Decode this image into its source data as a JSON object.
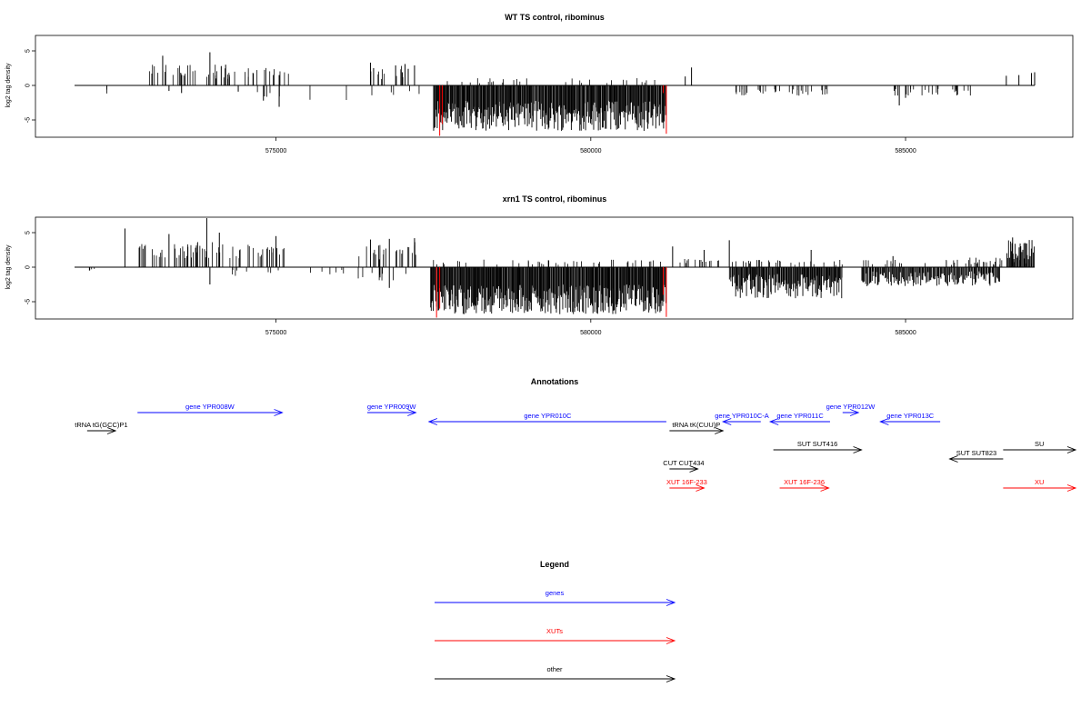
{
  "chart_data": [
    {
      "type": "bar",
      "title": "WT TS control, ribominus",
      "ylabel": "log2 tag density",
      "xlim": [
        571600,
        587800
      ],
      "ylim": [
        -7.5,
        7.5
      ],
      "yticks": [
        -5,
        0,
        5
      ],
      "xticks": [
        575000,
        580000,
        585000
      ],
      "xtick_labels": [
        "575000",
        "580000",
        "585000"
      ],
      "grid": false,
      "segments": [
        {
          "x0": 572300,
          "x1": 572320,
          "v": -0.9,
          "d": 2
        },
        {
          "x0": 572900,
          "x1": 573700,
          "v": 2.5,
          "d": 20
        },
        {
          "x0": 573700,
          "x1": 574500,
          "v": 2.4,
          "d": 18
        },
        {
          "x0": 574500,
          "x1": 575200,
          "v": 2.0,
          "d": 14
        },
        {
          "x0": 574700,
          "x1": 575200,
          "v": -1.4,
          "d": 5
        },
        {
          "x0": 575500,
          "x1": 575550,
          "v": -1.6,
          "d": 1
        },
        {
          "x0": 576100,
          "x1": 576130,
          "v": -1.8,
          "d": 1
        },
        {
          "x0": 576400,
          "x1": 577300,
          "v": 2.3,
          "d": 12
        },
        {
          "x0": 576400,
          "x1": 577300,
          "v": -1.2,
          "d": 5
        }
      ],
      "spikes": [
        {
          "x": 573200,
          "v": 4.3
        },
        {
          "x": 573300,
          "v": -0.8
        },
        {
          "x": 573500,
          "v": -1.1
        },
        {
          "x": 573950,
          "v": 4.8
        },
        {
          "x": 574200,
          "v": 3.0
        },
        {
          "x": 574400,
          "v": -0.9
        },
        {
          "x": 574800,
          "v": -2.2
        },
        {
          "x": 575050,
          "v": -3.1
        },
        {
          "x": 575050,
          "v": 1.5
        },
        {
          "x": 576500,
          "v": 3.3
        },
        {
          "x": 576550,
          "v": 2.5
        },
        {
          "x": 576900,
          "v": 2.9
        },
        {
          "x": 577050,
          "v": 3.1
        },
        {
          "x": 577100,
          "v": 2.4
        },
        {
          "x": 577200,
          "v": 2.9
        },
        {
          "x": 581500,
          "v": 1.3
        },
        {
          "x": 581600,
          "v": 2.6
        },
        {
          "x": 584900,
          "v": -2.9
        },
        {
          "x": 585000,
          "v": -1.8
        },
        {
          "x": 586600,
          "v": 1.4
        },
        {
          "x": 586800,
          "v": 1.5
        },
        {
          "x": 587000,
          "v": 1.8
        },
        {
          "x": 587050,
          "v": 1.9
        }
      ],
      "dense": [
        {
          "x0": 577500,
          "x1": 581200,
          "vmin": -6.6,
          "vmax": -2.2,
          "n": 320,
          "pos": 0.1
        }
      ],
      "highlights": [
        {
          "x": 577600,
          "v": -7.3
        },
        {
          "x": 577640,
          "v": -5.6
        },
        {
          "x": 581200,
          "v": -7.0
        },
        {
          "x": 581150,
          "v": -1.1
        }
      ],
      "sparse_groups": [
        {
          "x0": 582300,
          "x1": 583800,
          "vmin": -1.5,
          "vmax": -0.5,
          "n": 34
        },
        {
          "x0": 584800,
          "x1": 586100,
          "vmin": -1.5,
          "vmax": -0.4,
          "n": 28
        }
      ]
    },
    {
      "type": "bar",
      "title": "xrn1 TS control, ribominus",
      "ylabel": "log2 tag density",
      "xlim": [
        571600,
        587800
      ],
      "ylim": [
        -7.5,
        7.5
      ],
      "yticks": [
        -5,
        0,
        5
      ],
      "xticks": [
        575000,
        580000,
        585000
      ],
      "xtick_labels": [
        "575000",
        "580000",
        "585000"
      ],
      "grid": false,
      "segments": [
        {
          "x0": 572000,
          "x1": 572200,
          "v": -0.6,
          "d": 4
        },
        {
          "x0": 572800,
          "x1": 573600,
          "v": 2.6,
          "d": 24
        },
        {
          "x0": 573600,
          "x1": 574400,
          "v": 2.8,
          "d": 24
        },
        {
          "x0": 574400,
          "x1": 575200,
          "v": 2.5,
          "d": 22
        },
        {
          "x0": 574000,
          "x1": 575200,
          "v": -1.0,
          "d": 8
        },
        {
          "x0": 575500,
          "x1": 576200,
          "v": -0.8,
          "d": 6
        },
        {
          "x0": 576300,
          "x1": 577300,
          "v": 2.8,
          "d": 22
        },
        {
          "x0": 576300,
          "x1": 577300,
          "v": -1.5,
          "d": 10
        }
      ],
      "spikes": [
        {
          "x": 572600,
          "v": 5.6
        },
        {
          "x": 573300,
          "v": 4.8
        },
        {
          "x": 573900,
          "v": 7.1
        },
        {
          "x": 573950,
          "v": -2.5
        },
        {
          "x": 574100,
          "v": 5.0
        },
        {
          "x": 575000,
          "v": 4.5
        },
        {
          "x": 576500,
          "v": 4.0
        },
        {
          "x": 576800,
          "v": 4.1
        },
        {
          "x": 577200,
          "v": 4.2
        },
        {
          "x": 576800,
          "v": -3.0
        },
        {
          "x": 581300,
          "v": 3.0
        },
        {
          "x": 581800,
          "v": 2.5
        },
        {
          "x": 582200,
          "v": 3.9
        },
        {
          "x": 583500,
          "v": 2.5
        },
        {
          "x": 584800,
          "v": 1.6
        },
        {
          "x": 586700,
          "v": 4.3
        },
        {
          "x": 586900,
          "v": 3.5
        }
      ],
      "dense": [
        {
          "x0": 577450,
          "x1": 581200,
          "vmin": -6.8,
          "vmax": -2.5,
          "n": 340,
          "pos": 0.12
        },
        {
          "x0": 582200,
          "x1": 584000,
          "vmin": -4.5,
          "vmax": -1.0,
          "n": 150,
          "pos": 0.15
        },
        {
          "x0": 584300,
          "x1": 586500,
          "vmin": -2.8,
          "vmax": -0.6,
          "n": 150,
          "pos": 0.2
        },
        {
          "x0": 586600,
          "x1": 587050,
          "vmin": 1.0,
          "vmax": 4.0,
          "n": 30,
          "pos": 0.1
        }
      ],
      "highlights": [
        {
          "x": 577550,
          "v": -7.3
        },
        {
          "x": 577600,
          "v": -6.0
        },
        {
          "x": 581200,
          "v": -7.2
        },
        {
          "x": 581150,
          "v": -4.0
        }
      ],
      "sparse_groups": [
        {
          "x0": 581400,
          "x1": 582100,
          "vmin": 0.4,
          "vmax": 1.3,
          "n": 14
        },
        {
          "x0": 585600,
          "x1": 586600,
          "vmin": 0.4,
          "vmax": 1.4,
          "n": 14
        }
      ]
    },
    {
      "type": "annotation_track",
      "title": "Annotations",
      "features": [
        {
          "label": "tRNA tG(GCC)P1",
          "color": "#000000",
          "x0": 572000,
          "x1": 572450,
          "dir": 1,
          "row": 4
        },
        {
          "label": "gene YPR008W",
          "color": "#0000ff",
          "x0": 572800,
          "x1": 575100,
          "dir": 1,
          "row": 1
        },
        {
          "label": "gene YPR009W",
          "color": "#0000ff",
          "x0": 576450,
          "x1": 577220,
          "dir": 1,
          "row": 1
        },
        {
          "label": "gene YPR010C",
          "color": "#0000ff",
          "x0": 577430,
          "x1": 581200,
          "dir": -1,
          "row": 3
        },
        {
          "label": "tRNA tK(CUU)P",
          "color": "#000000",
          "x0": 581250,
          "x1": 582100,
          "dir": 1,
          "row": 4
        },
        {
          "label": "gene YPR010C-A",
          "color": "#0000ff",
          "x0": 582100,
          "x1": 582700,
          "dir": -1,
          "row": 3
        },
        {
          "label": "gene YPR011C",
          "color": "#0000ff",
          "x0": 582850,
          "x1": 583800,
          "dir": -1,
          "row": 3
        },
        {
          "label": "gene YPR012W",
          "color": "#0000ff",
          "x0": 584000,
          "x1": 584250,
          "dir": 1,
          "row": 1
        },
        {
          "label": "gene YPR013C",
          "color": "#0000ff",
          "x0": 584600,
          "x1": 585550,
          "dir": -1,
          "row": 3
        },
        {
          "label": "SUT SUT416",
          "color": "#000000",
          "x0": 582900,
          "x1": 584300,
          "dir": 1,
          "row": 6
        },
        {
          "label": "SUT SUT823",
          "color": "#000000",
          "x0": 585700,
          "x1": 586550,
          "dir": -1,
          "row": 7
        },
        {
          "label": "SU",
          "color": "#000000",
          "x0": 586550,
          "x1": 587700,
          "dir": 1,
          "row": 6
        },
        {
          "label": "CUT CUT434",
          "color": "#000000",
          "x0": 581250,
          "x1": 581700,
          "dir": 1,
          "row": 8
        },
        {
          "label": "XUT 16F-233",
          "color": "#ff0000",
          "x0": 581250,
          "x1": 581800,
          "dir": 1,
          "row": 9
        },
        {
          "label": "XUT 16F-236",
          "color": "#ff0000",
          "x0": 583000,
          "x1": 583780,
          "dir": 1,
          "row": 9
        },
        {
          "label": "XU",
          "color": "#ff0000",
          "x0": 586550,
          "x1": 587700,
          "dir": 1,
          "row": 9
        }
      ]
    },
    {
      "type": "legend",
      "title": "Legend",
      "entries": [
        {
          "label": "genes",
          "color": "#0000ff"
        },
        {
          "label": "XUTs",
          "color": "#ff0000"
        },
        {
          "label": "other",
          "color": "#000000"
        }
      ]
    }
  ]
}
